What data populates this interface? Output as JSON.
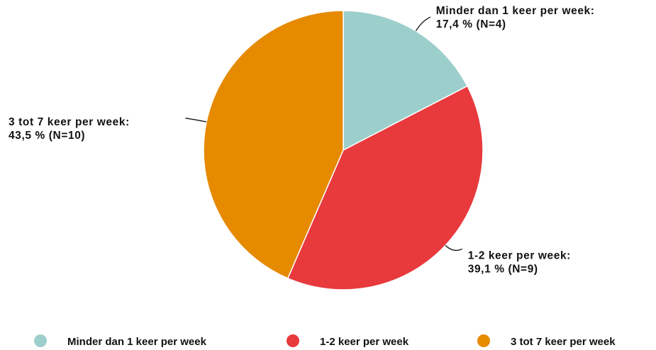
{
  "chart_data": {
    "type": "pie",
    "categories": [
      "Minder dan 1 keer per week",
      "1-2 keer per week",
      "3 tot 7 keer per week"
    ],
    "slice_labels": [
      "Minder dan 1 keer per week:",
      "1-2 keer per week:",
      "3 tot 7 keer per week:"
    ],
    "values": [
      17.4,
      39.1,
      43.5
    ],
    "value_labels": [
      "17,4 % (N=4)",
      "39,1 % (N=9)",
      "43,5 % (N=10)"
    ],
    "colors": [
      "#9ccfcc",
      "#e8393d",
      "#e68a00"
    ],
    "legend": "bottom"
  }
}
